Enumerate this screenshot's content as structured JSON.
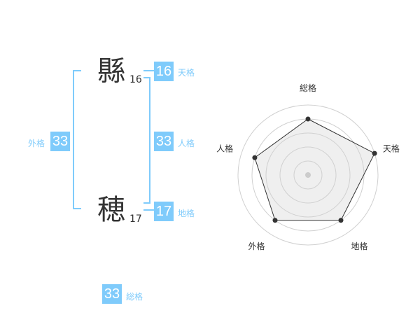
{
  "name": [
    {
      "char": "縣",
      "strokes": "16"
    },
    {
      "char": "穂",
      "strokes": "17"
    }
  ],
  "kaku": {
    "tenkaku": {
      "label": "天格",
      "value": "16"
    },
    "jinkaku": {
      "label": "人格",
      "value": "33"
    },
    "chikaku": {
      "label": "地格",
      "value": "17"
    },
    "gaikaku": {
      "label": "外格",
      "value": "33"
    },
    "soukaku": {
      "label": "総格",
      "value": "33"
    }
  },
  "accent": "#7fcbfb",
  "chart_data": {
    "type": "radar",
    "axes": [
      "総格",
      "天格",
      "地格",
      "外格",
      "人格"
    ],
    "values": [
      4,
      5,
      4,
      4,
      4
    ],
    "range": [
      0,
      5
    ],
    "grid": "concentric circles"
  }
}
